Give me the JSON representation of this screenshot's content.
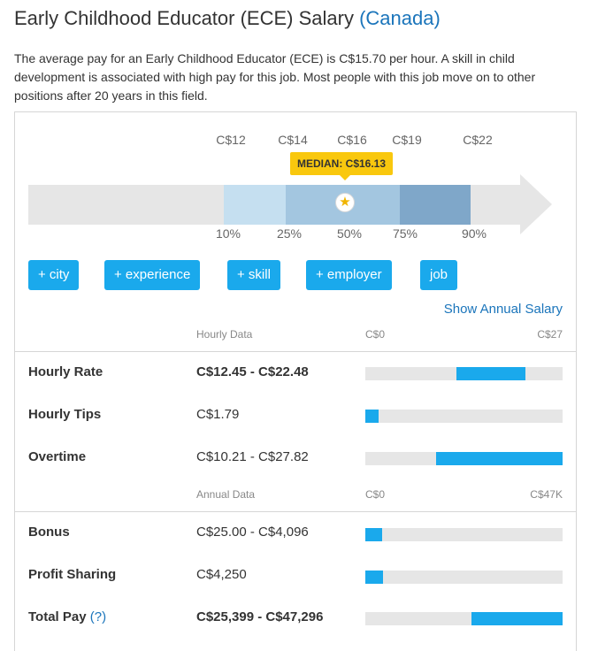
{
  "title": {
    "main": "Early Childhood Educator (ECE) Salary",
    "country": "(Canada)"
  },
  "intro": "The average pay for an Early Childhood Educator (ECE) is C$15.70 per hour. A skill in child development is associated with high pay for this job. Most people with this job move on to other positions after 20 years in this field.",
  "chart_data": {
    "type": "range",
    "top_ticks": [
      "C$12",
      "C$14",
      "C$16",
      "C$19",
      "C$22"
    ],
    "percentiles": [
      "10%",
      "25%",
      "50%",
      "75%",
      "90%"
    ],
    "median_label": "MEDIAN: C$16.13",
    "median_value": 16.13,
    "colors": {
      "p10_25": "#c5dff0",
      "p25_50": "#a3c6e0",
      "p50_75": "#a3c6e0",
      "p75_90": "#7fa7c9",
      "track": "#e6e6e6",
      "median_tag": "#f9c80e"
    }
  },
  "buttons": [
    "+ city",
    "+ experience",
    "+ skill",
    "+ employer",
    "job"
  ],
  "show_annual": "Show Annual Salary",
  "hourly_section": {
    "header": "Hourly Data",
    "min": "C$0",
    "max": "C$27",
    "rows": [
      {
        "label": "Hourly Rate",
        "value": "C$12.45 - C$22.48",
        "bold": true,
        "range": [
          0.46,
          0.81
        ]
      },
      {
        "label": "Hourly Tips",
        "value": "C$1.79",
        "bold": false,
        "range": [
          0.0,
          0.066
        ]
      },
      {
        "label": "Overtime",
        "value": "C$10.21 - C$27.82",
        "bold": false,
        "range": [
          0.36,
          1.0
        ]
      }
    ]
  },
  "annual_section": {
    "header": "Annual Data",
    "min": "C$0",
    "max": "C$47K",
    "rows": [
      {
        "label": "Bonus",
        "value": "C$25.00 - C$4,096",
        "bold": false,
        "range": [
          0.0,
          0.087
        ]
      },
      {
        "label": "Profit Sharing",
        "value": "C$4,250",
        "bold": false,
        "range": [
          0.0,
          0.09
        ]
      },
      {
        "label": "Total Pay",
        "help": "(?)",
        "value": "C$25,399 - C$47,296",
        "bold": true,
        "range": [
          0.537,
          1.0
        ]
      }
    ]
  },
  "accent_color": "#1aa9ec",
  "link_color": "#1b75bb",
  "icons": {
    "median": "star-icon"
  }
}
